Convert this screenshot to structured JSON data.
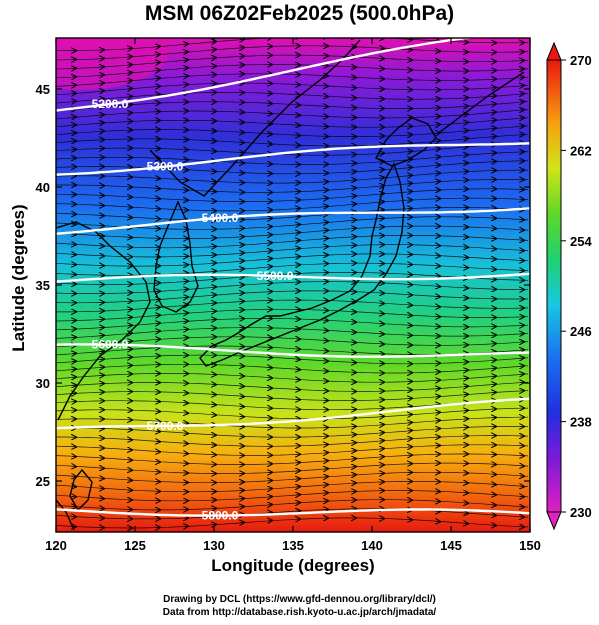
{
  "title": "MSM 06Z02Feb2025 (500.0hPa)",
  "xlabel": "Longitude (degrees)",
  "ylabel": "Latitude  (degrees)",
  "x_ticks": [
    "120",
    "125",
    "130",
    "135",
    "140",
    "145",
    "150"
  ],
  "y_ticks": [
    "25",
    "30",
    "35",
    "40",
    "45"
  ],
  "colorbar": {
    "ticks": [
      "230",
      "238",
      "246",
      "254",
      "262",
      "270"
    ],
    "min": 230,
    "max": 270
  },
  "map_data": {
    "lon_range": [
      120,
      150
    ],
    "lat_range": [
      22.4,
      47.6
    ],
    "field": "temperature (K), shaded",
    "height_contours": [
      {
        "label": "5200.0",
        "lat_west": 43.9,
        "lat_east": 48.0
      },
      {
        "label": "5300.0",
        "lat_west": 40.8,
        "lat_east": 42.4
      },
      {
        "label": "5400.0",
        "lat_west": 37.8,
        "lat_east": 39.1
      },
      {
        "label": "5500.0",
        "lat_west": 35.2,
        "lat_east": 35.6
      },
      {
        "label": "5600.0",
        "lat_west": 31.8,
        "lat_east": 31.4
      },
      {
        "label": "5700.0",
        "lat_west": 27.5,
        "lat_east": 29.0
      },
      {
        "label": "5800.0",
        "lat_west": 23.5,
        "lat_east": 23.3
      }
    ],
    "wind": "westerly streamlines"
  },
  "credits": [
    "Drawing by DCL (https://www.gfd-dennou.org/library/dcl/)",
    "Data from http://database.rish.kyoto-u.ac.jp/arch/jmadata/"
  ]
}
